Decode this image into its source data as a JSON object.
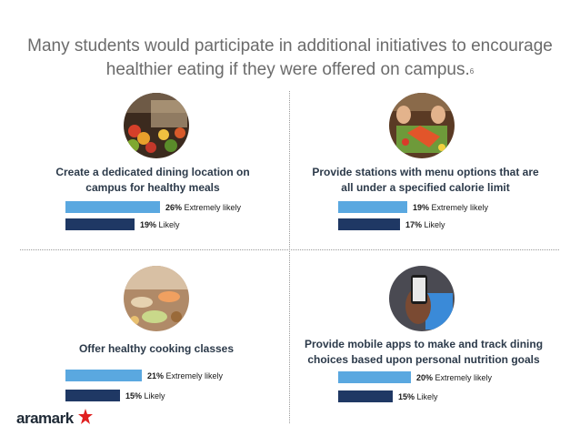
{
  "title": "Many students would participate in additional initiatives to encourage healthier eating if they were offered on campus.",
  "title_footnote": "6",
  "logo": {
    "text": "aramark",
    "icon": "star-person-icon"
  },
  "colors": {
    "extremely_likely": "#5aa8e0",
    "likely": "#1f3864",
    "heading": "#2c3a4a"
  },
  "chart_data": [
    {
      "type": "bar",
      "orientation": "horizontal",
      "title": "Create a dedicated dining location on campus for healthy meals",
      "series": [
        {
          "name": "Extremely likely",
          "values": [
            26
          ]
        },
        {
          "name": "Likely",
          "values": [
            19
          ]
        }
      ],
      "unit": "%"
    },
    {
      "type": "bar",
      "orientation": "horizontal",
      "title": "Provide stations with menu options that are all under a specified calorie limit",
      "series": [
        {
          "name": "Extremely likely",
          "values": [
            19
          ]
        },
        {
          "name": "Likely",
          "values": [
            17
          ]
        }
      ],
      "unit": "%"
    },
    {
      "type": "bar",
      "orientation": "horizontal",
      "title": "Offer healthy cooking classes",
      "series": [
        {
          "name": "Extremely likely",
          "values": [
            21
          ]
        },
        {
          "name": "Likely",
          "values": [
            15
          ]
        }
      ],
      "unit": "%"
    },
    {
      "type": "bar",
      "orientation": "horizontal",
      "title": "Provide mobile apps to make and track dining choices based upon personal nutrition goals",
      "series": [
        {
          "name": "Extremely likely",
          "values": [
            20
          ]
        },
        {
          "name": "Likely",
          "values": [
            15
          ]
        }
      ],
      "unit": "%"
    }
  ]
}
